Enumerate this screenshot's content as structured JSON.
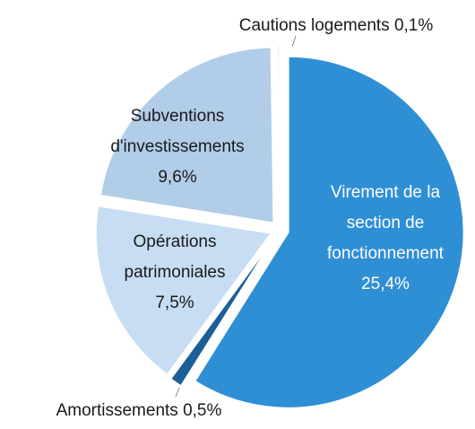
{
  "chart_data": {
    "type": "pie",
    "categories": [
      "Virement de la section de fonctionnement",
      "Amortissements",
      "Opérations patrimoniales",
      "Subventions d'investissements",
      "Cautions logements"
    ],
    "values": [
      25.4,
      0.5,
      7.5,
      9.6,
      0.1
    ],
    "value_labels": [
      "25,4%",
      "0,5%",
      "7,5%",
      "9,6%",
      "0,1%"
    ],
    "colors": [
      "#2f8fd5",
      "#1c5f98",
      "#c7ddf3",
      "#b1cde7",
      "#dfeaf6"
    ]
  }
}
